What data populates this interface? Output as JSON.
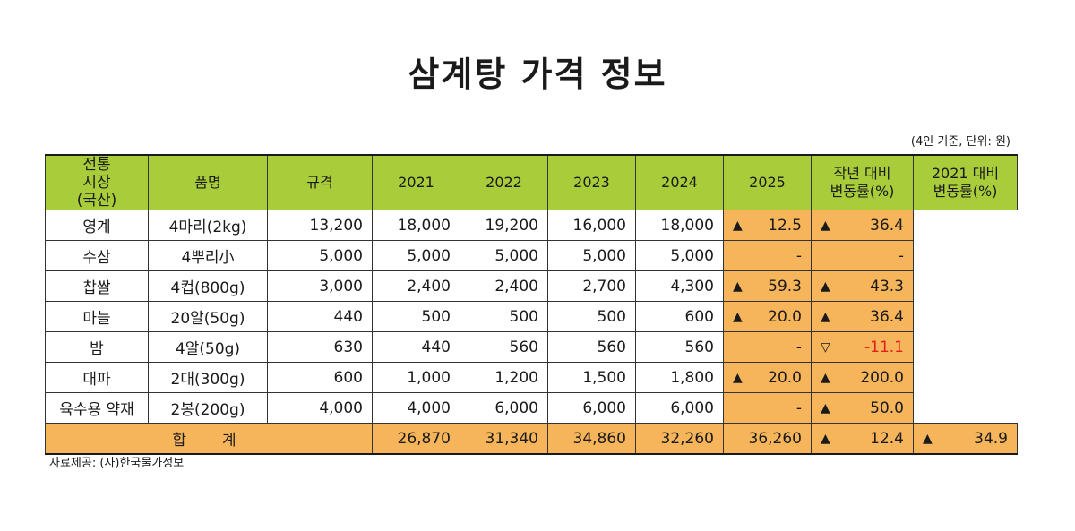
{
  "title": "삼계탕 가격 정보",
  "unit_note": "(4인 기준, 단위: 원)",
  "group_label": [
    "전통",
    "시장",
    "(국산)"
  ],
  "headers": {
    "item": "품명",
    "spec": "규격",
    "years": [
      "2021",
      "2022",
      "2023",
      "2024",
      "2025"
    ],
    "yoy": [
      "작년 대비",
      "변동률(%)"
    ],
    "vs2021": [
      "2021 대비",
      "변동률(%)"
    ]
  },
  "rows": [
    {
      "item": "영계",
      "spec": "4마리(2kg)",
      "values": [
        "13,200",
        "18,000",
        "19,200",
        "16,000",
        "18,000"
      ],
      "yoy_arrow": "▲",
      "yoy": "12.5",
      "vs2021_arrow": "▲",
      "vs2021": "36.4"
    },
    {
      "item": "수삼",
      "spec": "4뿌리小",
      "values": [
        "5,000",
        "5,000",
        "5,000",
        "5,000",
        "5,000"
      ],
      "yoy_arrow": "",
      "yoy": "-",
      "vs2021_arrow": "",
      "vs2021": "-"
    },
    {
      "item": "찹쌀",
      "spec": "4컵(800g)",
      "values": [
        "3,000",
        "2,400",
        "2,400",
        "2,700",
        "4,300"
      ],
      "yoy_arrow": "▲",
      "yoy": "59.3",
      "vs2021_arrow": "▲",
      "vs2021": "43.3"
    },
    {
      "item": "마늘",
      "spec": "20알(50g)",
      "values": [
        "440",
        "500",
        "500",
        "500",
        "600"
      ],
      "yoy_arrow": "▲",
      "yoy": "20.0",
      "vs2021_arrow": "▲",
      "vs2021": "36.4"
    },
    {
      "item": "밤",
      "spec": "4알(50g)",
      "values": [
        "630",
        "440",
        "560",
        "560",
        "560"
      ],
      "yoy_arrow": "",
      "yoy": "-",
      "vs2021_arrow": "▽",
      "vs2021": "-11.1"
    },
    {
      "item": "대파",
      "spec": "2대(300g)",
      "values": [
        "600",
        "1,000",
        "1,200",
        "1,500",
        "1,800"
      ],
      "yoy_arrow": "▲",
      "yoy": "20.0",
      "vs2021_arrow": "▲",
      "vs2021": "200.0"
    },
    {
      "item": "육수용 약재",
      "spec": "2봉(200g)",
      "values": [
        "4,000",
        "4,000",
        "6,000",
        "6,000",
        "6,000"
      ],
      "yoy_arrow": "",
      "yoy": "-",
      "vs2021_arrow": "▲",
      "vs2021": "50.0"
    }
  ],
  "total": {
    "label": "합계",
    "values": [
      "26,870",
      "31,340",
      "34,860",
      "32,260",
      "36,260"
    ],
    "yoy_arrow": "▲",
    "yoy": "12.4",
    "vs2021_arrow": "▲",
    "vs2021": "34.9"
  },
  "source": "자료제공: (사)한국물가정보",
  "colors": {
    "header_green": "#a8cc3a",
    "change_orange": "#f6b55a",
    "negative_red": "#e0201a"
  }
}
